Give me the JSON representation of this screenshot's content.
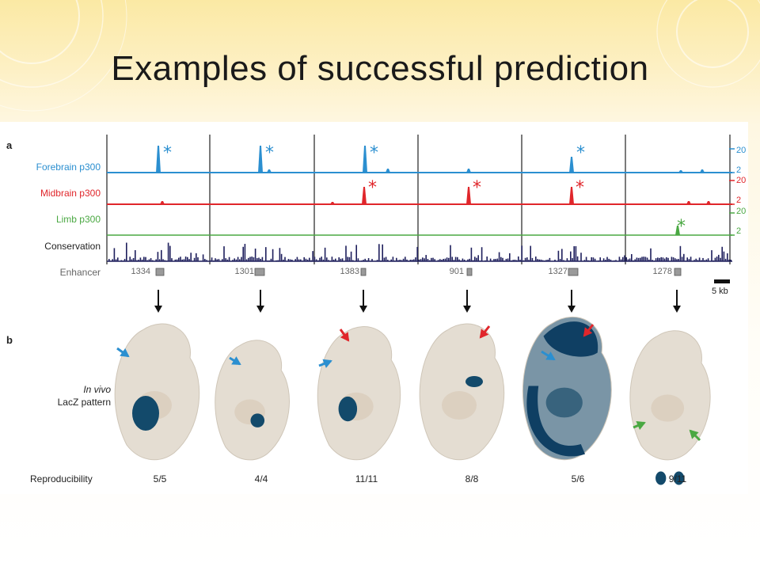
{
  "slide": {
    "title": "Examples of successful prediction"
  },
  "figure": {
    "panel_a": "a",
    "panel_b": "b",
    "tracks": [
      {
        "label": "Forebrain p300",
        "color": "#2b8fd0",
        "max": "20",
        "min": "2"
      },
      {
        "label": "Midbrain p300",
        "color": "#e0262b",
        "max": "20",
        "min": "2"
      },
      {
        "label": "Limb p300",
        "color": "#4aa842",
        "max": "20",
        "min": "2"
      },
      {
        "label": "Conservation",
        "color": "#1e1f5c"
      },
      {
        "label": "Enhancer",
        "color": "#555555"
      }
    ],
    "enhancers": [
      "1334",
      "1301",
      "1383",
      "901",
      "1327",
      "1278"
    ],
    "scale_bar": "5 kb",
    "lacz_line1": "In vivo",
    "lacz_line2": "LacZ pattern",
    "reproducibility_label": "Reproducibility",
    "reproducibility": [
      "5/5",
      "4/4",
      "11/11",
      "8/8",
      "5/6",
      "9/11"
    ],
    "asterisk": "*"
  }
}
